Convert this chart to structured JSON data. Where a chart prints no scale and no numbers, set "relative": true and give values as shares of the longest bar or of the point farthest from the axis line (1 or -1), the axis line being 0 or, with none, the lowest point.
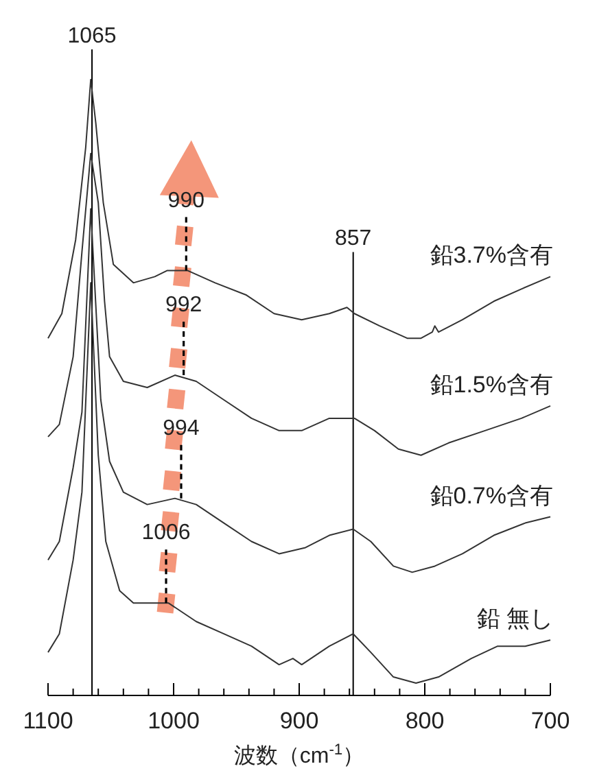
{
  "chart_data": {
    "type": "line",
    "relative": true,
    "xlabel": "波数（cm$^{-1}$）",
    "xlim": [
      1100,
      700
    ],
    "xticks": [
      1100,
      {
        "value": 1080,
        "label": null
      },
      {
        "value": 1060,
        "label": null
      },
      {
        "value": 1040,
        "label": null
      },
      {
        "value": 1020,
        "label": null
      },
      1000,
      {
        "value": 980,
        "label": null
      },
      {
        "value": 960,
        "label": null
      },
      {
        "value": 940,
        "label": null
      },
      {
        "value": 920,
        "label": null
      },
      900,
      {
        "value": 880,
        "label": null
      },
      {
        "value": 860,
        "label": null
      },
      {
        "value": 840,
        "label": null
      },
      {
        "value": 820,
        "label": null
      },
      800,
      {
        "value": 780,
        "label": null
      },
      {
        "value": 760,
        "label": null
      },
      {
        "value": 740,
        "label": null
      },
      {
        "value": 720,
        "label": null
      },
      700
    ],
    "series": [
      {
        "name": "鉛3.7%含有",
        "color": "#333333",
        "x": [
          1100,
          1089,
          1078,
          1070,
          1066,
          1062,
          1056,
          1048,
          1032,
          1015,
          1005,
          989,
          967,
          942,
          920,
          898,
          876,
          862,
          856,
          836,
          814,
          803,
          794,
          792,
          789,
          770,
          745,
          723,
          700
        ],
        "values": [
          0.58,
          0.62,
          0.74,
          0.89,
          1.0,
          0.93,
          0.8,
          0.7,
          0.67,
          0.68,
          0.69,
          0.69,
          0.67,
          0.65,
          0.62,
          0.61,
          0.62,
          0.63,
          0.62,
          0.6,
          0.58,
          0.58,
          0.59,
          0.6,
          0.59,
          0.61,
          0.64,
          0.66,
          0.68
        ]
      },
      {
        "name": "鉛1.5%含有",
        "color": "#333333",
        "x": [
          1100,
          1091,
          1080,
          1073,
          1066,
          1060,
          1055,
          1051,
          1040,
          1021,
          999,
          982,
          960,
          938,
          916,
          898,
          876,
          856,
          840,
          821,
          803,
          781,
          752,
          723,
          700
        ],
        "values": [
          0.42,
          0.44,
          0.55,
          0.72,
          0.88,
          0.8,
          0.64,
          0.55,
          0.51,
          0.5,
          0.52,
          0.51,
          0.48,
          0.45,
          0.43,
          0.43,
          0.45,
          0.45,
          0.43,
          0.4,
          0.39,
          0.41,
          0.43,
          0.45,
          0.47
        ]
      },
      {
        "name": "鉛0.7%含有",
        "color": "#333333",
        "x": [
          1100,
          1091,
          1080,
          1073,
          1066,
          1058,
          1051,
          1040,
          1021,
          999,
          982,
          960,
          938,
          916,
          895,
          876,
          857,
          843,
          825,
          810,
          792,
          770,
          745,
          720,
          700
        ],
        "values": [
          0.22,
          0.25,
          0.37,
          0.46,
          0.79,
          0.48,
          0.38,
          0.33,
          0.31,
          0.32,
          0.31,
          0.28,
          0.25,
          0.23,
          0.24,
          0.26,
          0.27,
          0.25,
          0.21,
          0.2,
          0.21,
          0.23,
          0.26,
          0.28,
          0.29
        ]
      },
      {
        "name": "鉛 無し",
        "color": "#333333",
        "x": [
          1100,
          1091,
          1080,
          1073,
          1066,
          1060,
          1054,
          1043,
          1032,
          1018,
          1004,
          982,
          960,
          938,
          916,
          905,
          898,
          876,
          857,
          843,
          825,
          807,
          789,
          763,
          742,
          720,
          700
        ],
        "values": [
          0.07,
          0.1,
          0.22,
          0.33,
          0.67,
          0.39,
          0.25,
          0.17,
          0.15,
          0.15,
          0.15,
          0.12,
          0.1,
          0.08,
          0.05,
          0.06,
          0.05,
          0.08,
          0.1,
          0.07,
          0.03,
          0.02,
          0.03,
          0.06,
          0.08,
          0.08,
          0.09
        ]
      }
    ],
    "ref_lines": [
      {
        "axis": "x",
        "value": 1065,
        "label": "1065",
        "color": "#000000"
      },
      {
        "axis": "x",
        "value": 857,
        "label": "857",
        "color": "#000000"
      }
    ],
    "annotations": [
      {
        "text": "990",
        "x": 990,
        "y": 0.69
      },
      {
        "text": "992",
        "x": 992,
        "y": 0.52
      },
      {
        "text": "994",
        "x": 994,
        "y": 0.32
      },
      {
        "text": "1006",
        "x": 1006,
        "y": 0.15
      }
    ]
  }
}
